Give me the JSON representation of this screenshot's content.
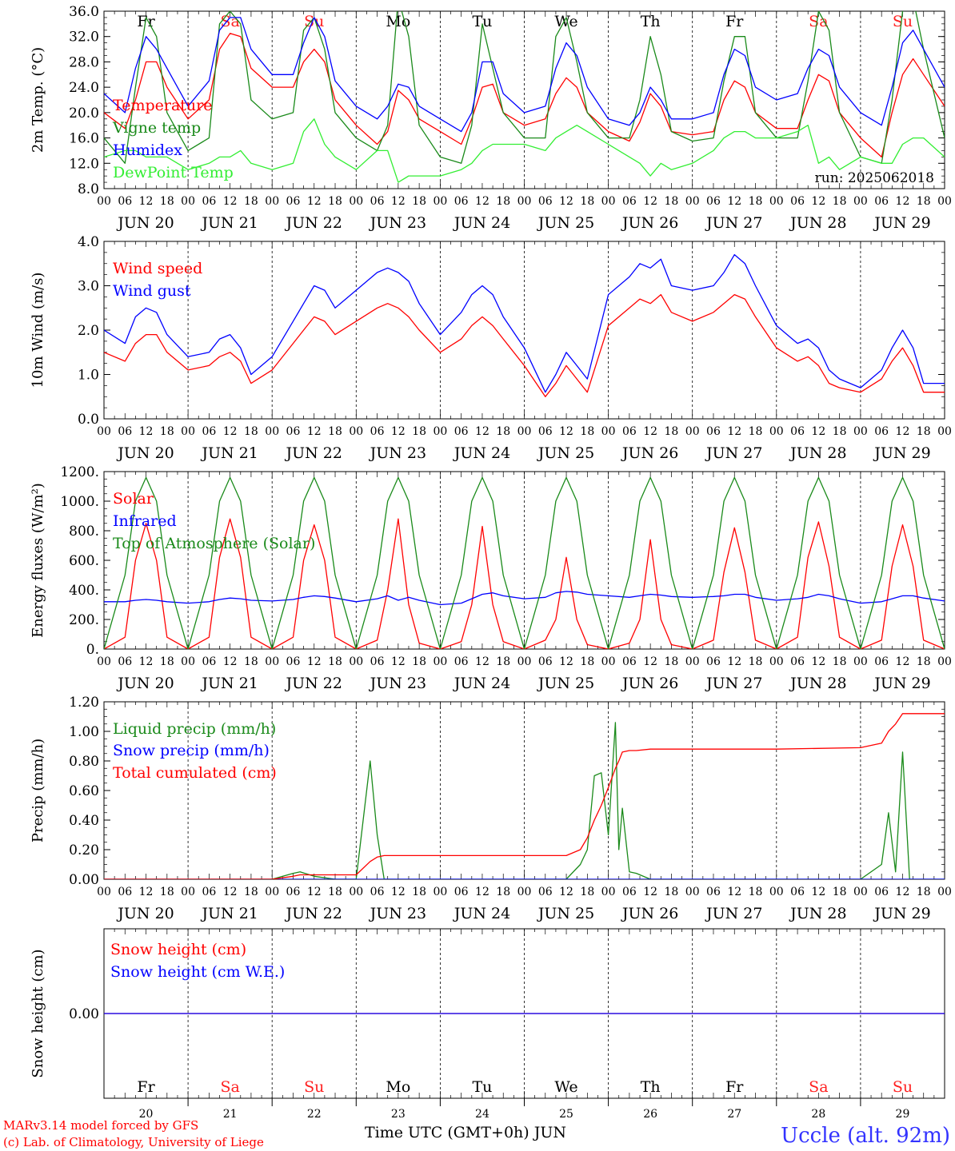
{
  "run_label": "run: 2025062018",
  "footer": {
    "credit1": "MARv3.14 model forced by GFS",
    "credit2": "(c) Lab. of Climatology, University of Liege",
    "axis_title": "Time UTC (GMT+0h) JUN",
    "station": "Uccle (alt. 92m)"
  },
  "days": [
    {
      "label": "JUN 20",
      "num": "20",
      "dow": "Fr",
      "weekend": false
    },
    {
      "label": "JUN 21",
      "num": "21",
      "dow": "Sa",
      "weekend": true
    },
    {
      "label": "JUN 22",
      "num": "22",
      "dow": "Su",
      "weekend": true
    },
    {
      "label": "JUN 23",
      "num": "23",
      "dow": "Mo",
      "weekend": false
    },
    {
      "label": "JUN 24",
      "num": "24",
      "dow": "Tu",
      "weekend": false
    },
    {
      "label": "JUN 25",
      "num": "25",
      "dow": "We",
      "weekend": false
    },
    {
      "label": "JUN 26",
      "num": "26",
      "dow": "Th",
      "weekend": false
    },
    {
      "label": "JUN 27",
      "num": "27",
      "dow": "Fr",
      "weekend": false
    },
    {
      "label": "JUN 28",
      "num": "28",
      "dow": "Sa",
      "weekend": true
    },
    {
      "label": "JUN 29",
      "num": "29",
      "dow": "Su",
      "weekend": true
    }
  ],
  "hour_ticks": [
    "00",
    "06",
    "12",
    "18"
  ],
  "colors": {
    "red": "#ff0000",
    "green": "#1a8a1a",
    "blue": "#0000ff",
    "lightgreen": "#33ee33",
    "weekend": "#ff2020"
  },
  "chart_data": [
    {
      "type": "line",
      "ylabel": "2m Temp. (°C)",
      "ylim": [
        8,
        36
      ],
      "yticks": [
        "8.0",
        "12.0",
        "16.0",
        "20.0",
        "24.0",
        "28.0",
        "32.0",
        "36.0"
      ],
      "x_hours": [
        0,
        6,
        9,
        12,
        15,
        18,
        24,
        30,
        33,
        36,
        39,
        42,
        48,
        54,
        57,
        60,
        63,
        66,
        72,
        78,
        81,
        84,
        87,
        90,
        96,
        102,
        105,
        108,
        111,
        114,
        120,
        126,
        129,
        132,
        135,
        138,
        144,
        150,
        153,
        156,
        159,
        162,
        168,
        174,
        177,
        180,
        183,
        186,
        192,
        198,
        201,
        204,
        207,
        210,
        216,
        222,
        225,
        228,
        231,
        234,
        240
      ],
      "series": [
        {
          "name": "Temperature",
          "color": "red",
          "values": [
            20,
            17.5,
            22,
            28,
            28,
            24,
            19,
            22,
            30,
            32.5,
            32,
            27,
            24,
            24,
            28,
            30,
            28,
            22,
            18,
            15,
            17,
            23.5,
            22,
            19,
            17,
            15,
            19,
            24,
            24.5,
            20,
            18,
            19,
            23,
            25.5,
            24,
            20,
            17,
            15.5,
            18.5,
            23,
            21,
            17,
            16.5,
            17,
            22,
            25,
            24,
            20,
            17.5,
            17.5,
            22,
            26,
            25,
            20,
            16,
            13,
            20,
            26,
            28.5,
            26,
            21
          ]
        },
        {
          "name": "Vigne temp",
          "color": "green",
          "values": [
            16,
            12,
            24,
            35,
            32,
            20,
            14,
            16,
            34,
            36,
            34,
            22,
            19,
            20,
            33,
            35,
            30,
            20,
            16,
            14,
            18,
            38,
            32,
            18,
            13,
            12,
            18,
            34,
            27,
            20,
            16,
            16,
            32,
            35,
            28,
            20,
            16,
            16,
            22,
            32,
            26,
            17,
            15.5,
            16,
            25,
            32,
            32,
            20,
            16,
            16,
            25,
            36,
            33,
            20,
            13,
            12,
            22,
            36,
            38,
            30,
            16
          ]
        },
        {
          "name": "Humidex",
          "color": "blue",
          "values": [
            23,
            20,
            27,
            32,
            30,
            27,
            21,
            25,
            33,
            35,
            35,
            30,
            26,
            26,
            31,
            35,
            32,
            25,
            21,
            19,
            21,
            24.5,
            24,
            21,
            19,
            17,
            20,
            28,
            28,
            23,
            20,
            21,
            27,
            31,
            29,
            24,
            19,
            18,
            20,
            24,
            22,
            19,
            19,
            20,
            26,
            30,
            29,
            24,
            22,
            23,
            27,
            30,
            29,
            24,
            20,
            18,
            24,
            31,
            33,
            30,
            24
          ]
        },
        {
          "name": "DewPoint Temp",
          "color": "lightgreen",
          "values": [
            13,
            14,
            14,
            13,
            13,
            13,
            11,
            12,
            13,
            13,
            14,
            12,
            11,
            12,
            17,
            19,
            15,
            13,
            11,
            14,
            14,
            9,
            10,
            10,
            10,
            11,
            12,
            14,
            15,
            15,
            15,
            14,
            16,
            17,
            18,
            17,
            15,
            13,
            12,
            10,
            12,
            11,
            12,
            14,
            16,
            17,
            17,
            16,
            16,
            17,
            18,
            12,
            13,
            11,
            13,
            12,
            12,
            15,
            16,
            16,
            13
          ]
        }
      ]
    },
    {
      "type": "line",
      "ylabel": "10m Wind (m/s)",
      "ylim": [
        0,
        4
      ],
      "yticks": [
        "0.0",
        "1.0",
        "2.0",
        "3.0",
        "4.0"
      ],
      "x_hours": [
        0,
        6,
        9,
        12,
        15,
        18,
        24,
        30,
        33,
        36,
        39,
        42,
        48,
        54,
        57,
        60,
        63,
        66,
        72,
        78,
        81,
        84,
        87,
        90,
        96,
        102,
        105,
        108,
        111,
        114,
        120,
        126,
        129,
        132,
        135,
        138,
        144,
        150,
        153,
        156,
        159,
        162,
        168,
        174,
        177,
        180,
        183,
        186,
        192,
        198,
        201,
        204,
        207,
        210,
        216,
        222,
        225,
        228,
        231,
        234,
        240
      ],
      "series": [
        {
          "name": "Wind speed",
          "color": "red",
          "values": [
            1.5,
            1.3,
            1.7,
            1.9,
            1.9,
            1.5,
            1.1,
            1.2,
            1.4,
            1.5,
            1.3,
            0.8,
            1.1,
            1.7,
            2.0,
            2.3,
            2.2,
            1.9,
            2.2,
            2.5,
            2.6,
            2.5,
            2.3,
            2.0,
            1.5,
            1.8,
            2.1,
            2.3,
            2.1,
            1.8,
            1.2,
            0.5,
            0.8,
            1.2,
            0.9,
            0.6,
            2.1,
            2.5,
            2.7,
            2.6,
            2.8,
            2.4,
            2.2,
            2.4,
            2.6,
            2.8,
            2.7,
            2.3,
            1.6,
            1.3,
            1.4,
            1.2,
            0.8,
            0.7,
            0.6,
            0.9,
            1.3,
            1.6,
            1.2,
            0.6,
            0.6
          ]
        },
        {
          "name": "Wind gust",
          "color": "blue",
          "values": [
            2.0,
            1.7,
            2.3,
            2.5,
            2.4,
            1.9,
            1.4,
            1.5,
            1.8,
            1.9,
            1.6,
            1.0,
            1.4,
            2.2,
            2.6,
            3.0,
            2.9,
            2.5,
            2.9,
            3.3,
            3.4,
            3.3,
            3.1,
            2.6,
            1.9,
            2.4,
            2.8,
            3.0,
            2.8,
            2.3,
            1.6,
            0.6,
            1.0,
            1.5,
            1.2,
            0.9,
            2.8,
            3.2,
            3.5,
            3.4,
            3.6,
            3.0,
            2.9,
            3.0,
            3.3,
            3.7,
            3.5,
            3.0,
            2.1,
            1.7,
            1.8,
            1.6,
            1.1,
            0.9,
            0.7,
            1.1,
            1.6,
            2.0,
            1.6,
            0.8,
            0.8
          ]
        }
      ]
    },
    {
      "type": "line",
      "ylabel": "Energy fluxes (W/m²)",
      "ylim": [
        0,
        1200
      ],
      "yticks": [
        "0.",
        "200.",
        "400.",
        "600.",
        "800.",
        "1000.",
        "1200."
      ],
      "x_hours": [
        0,
        6,
        9,
        12,
        15,
        18,
        24,
        30,
        33,
        36,
        39,
        42,
        48,
        54,
        57,
        60,
        63,
        66,
        72,
        78,
        81,
        84,
        87,
        90,
        96,
        102,
        105,
        108,
        111,
        114,
        120,
        126,
        129,
        132,
        135,
        138,
        144,
        150,
        153,
        156,
        159,
        162,
        168,
        174,
        177,
        180,
        183,
        186,
        192,
        198,
        201,
        204,
        207,
        210,
        216,
        222,
        225,
        228,
        231,
        234,
        240
      ],
      "series": [
        {
          "name": "Solar",
          "color": "red",
          "values": [
            0,
            80,
            600,
            850,
            600,
            80,
            0,
            80,
            620,
            880,
            620,
            80,
            0,
            80,
            600,
            840,
            600,
            80,
            0,
            60,
            400,
            880,
            300,
            40,
            0,
            50,
            300,
            830,
            300,
            50,
            0,
            60,
            200,
            620,
            200,
            30,
            0,
            40,
            200,
            740,
            200,
            30,
            0,
            60,
            520,
            820,
            520,
            60,
            0,
            80,
            620,
            860,
            560,
            80,
            0,
            60,
            560,
            840,
            560,
            60,
            0
          ]
        },
        {
          "name": "Infrared",
          "color": "blue",
          "values": [
            320,
            320,
            330,
            335,
            330,
            320,
            310,
            320,
            335,
            345,
            340,
            330,
            325,
            335,
            350,
            360,
            355,
            345,
            320,
            340,
            360,
            330,
            350,
            330,
            300,
            310,
            340,
            370,
            380,
            360,
            340,
            350,
            380,
            390,
            385,
            370,
            360,
            350,
            360,
            370,
            365,
            355,
            350,
            355,
            360,
            370,
            370,
            350,
            330,
            340,
            350,
            370,
            360,
            340,
            310,
            320,
            340,
            360,
            360,
            345,
            325
          ]
        },
        {
          "name": "Top of Atmosphere (Solar)",
          "color": "green",
          "values": [
            0,
            500,
            1000,
            1160,
            1000,
            500,
            0,
            500,
            1000,
            1160,
            1000,
            500,
            0,
            500,
            1000,
            1160,
            1000,
            500,
            0,
            500,
            1000,
            1160,
            1000,
            500,
            0,
            500,
            1000,
            1160,
            1000,
            500,
            0,
            500,
            1000,
            1160,
            1000,
            500,
            0,
            500,
            1000,
            1160,
            1000,
            500,
            0,
            500,
            1000,
            1160,
            1000,
            500,
            0,
            500,
            1000,
            1160,
            1000,
            500,
            0,
            500,
            1000,
            1160,
            1000,
            500,
            0
          ]
        }
      ]
    },
    {
      "type": "line",
      "ylabel": "Precip (mm/h)",
      "ylim": [
        0,
        1.2
      ],
      "yticks": [
        "0.00",
        "0.20",
        "0.40",
        "0.60",
        "0.80",
        "1.00",
        "1.20"
      ],
      "x_hours": [
        0,
        48,
        54,
        56,
        60,
        66,
        72,
        76,
        78,
        80,
        84,
        96,
        120,
        132,
        136,
        138,
        140,
        142,
        144,
        146,
        147,
        148,
        150,
        152,
        156,
        160,
        168,
        192,
        216,
        222,
        224,
        226,
        228,
        230,
        240
      ],
      "series": [
        {
          "name": "Liquid precip (mm/h)",
          "color": "green",
          "values": [
            0,
            0,
            0.04,
            0.05,
            0.02,
            0,
            0,
            0.8,
            0.3,
            0,
            0,
            0,
            0,
            0,
            0.1,
            0.2,
            0.7,
            0.72,
            0.3,
            1.06,
            0.2,
            0.48,
            0.05,
            0.04,
            0,
            0,
            0,
            0,
            0,
            0.1,
            0.45,
            0.05,
            0.86,
            0,
            0
          ]
        },
        {
          "name": "Snow precip (mm/h)",
          "color": "blue",
          "values": [
            0,
            0,
            0,
            0,
            0,
            0,
            0,
            0,
            0,
            0,
            0,
            0,
            0,
            0,
            0,
            0,
            0,
            0,
            0,
            0,
            0,
            0,
            0,
            0,
            0,
            0,
            0,
            0,
            0,
            0,
            0,
            0,
            0,
            0,
            0
          ]
        },
        {
          "name": "Total cumulated (cm)",
          "color": "red",
          "values": [
            0,
            0,
            0.02,
            0.03,
            0.03,
            0.03,
            0.03,
            0.12,
            0.15,
            0.16,
            0.16,
            0.16,
            0.16,
            0.16,
            0.2,
            0.28,
            0.4,
            0.5,
            0.62,
            0.75,
            0.8,
            0.86,
            0.87,
            0.87,
            0.88,
            0.88,
            0.88,
            0.88,
            0.89,
            0.92,
            1.0,
            1.05,
            1.12,
            1.12,
            1.12
          ]
        }
      ]
    },
    {
      "type": "line",
      "ylabel": "Snow height (cm)",
      "ylim": [
        -1,
        1
      ],
      "yticks": [
        "0.00"
      ],
      "x_hours": [
        0,
        240
      ],
      "series": [
        {
          "name": "Snow height (cm)",
          "color": "red",
          "values": [
            0,
            0
          ]
        },
        {
          "name": "Snow height (cm W.E.)",
          "color": "blue",
          "values": [
            0,
            0
          ]
        }
      ]
    }
  ]
}
